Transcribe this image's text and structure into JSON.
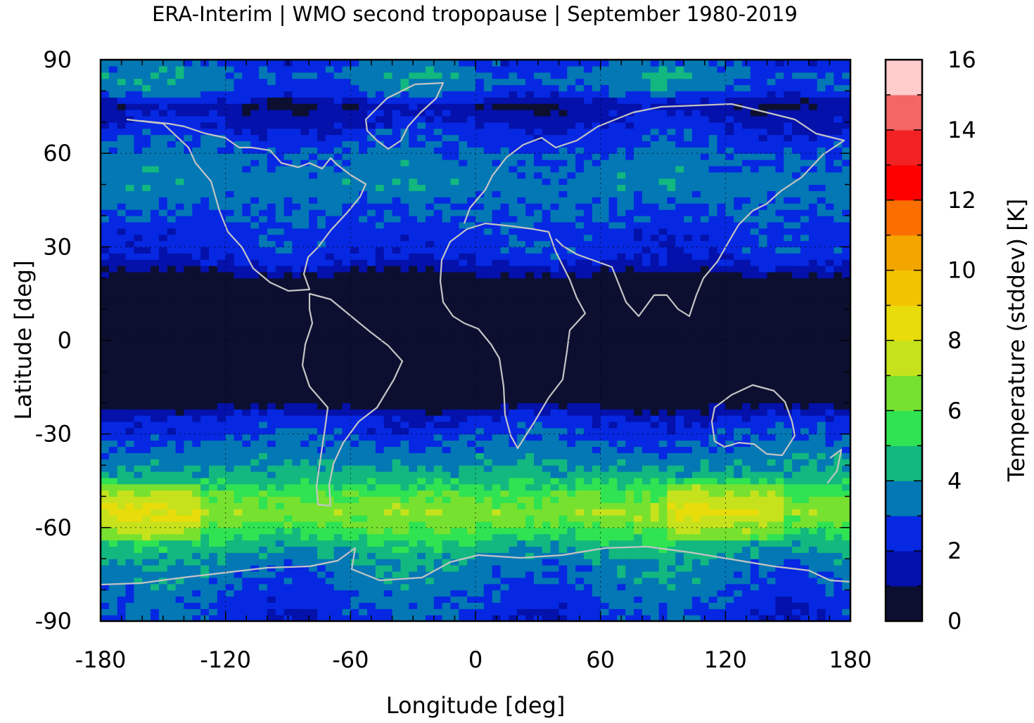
{
  "chart_data": {
    "type": "heatmap",
    "title": "ERA-Interim | WMO second tropopause | September 1980-2019",
    "xlabel": "Longitude [deg]",
    "ylabel": "Latitude [deg]",
    "xlim": [
      -180,
      180
    ],
    "ylim": [
      -90,
      90
    ],
    "x_ticks": [
      "-180",
      "-120",
      "-60",
      "0",
      "60",
      "120",
      "180"
    ],
    "y_ticks": [
      "90",
      "60",
      "30",
      "0",
      "-30",
      "-60",
      "-90"
    ],
    "grid": true,
    "colorbar": {
      "label": "Temperature (stddev) [K]",
      "range": [
        0,
        16
      ],
      "step": 1,
      "tick_labels": [
        "0",
        "2",
        "4",
        "6",
        "8",
        "10",
        "12",
        "14",
        "16"
      ],
      "colors": [
        "#0c0f30",
        "#0411aa",
        "#0628e2",
        "#0378b4",
        "#12b87f",
        "#2fe352",
        "#77e12f",
        "#c6e21c",
        "#e8dc0a",
        "#f2c300",
        "#f4a600",
        "#fb6f00",
        "#fe0000",
        "#f22222",
        "#f26666",
        "#ffcccc"
      ]
    },
    "zonal_profile": {
      "latitudes": [
        -90,
        -80,
        -70,
        -65,
        -60,
        -55,
        -50,
        -45,
        -40,
        -35,
        -30,
        -25,
        -20,
        0,
        20,
        25,
        30,
        35,
        40,
        45,
        50,
        60,
        70,
        75,
        80,
        85,
        90
      ],
      "values": [
        2.5,
        3.0,
        3.8,
        4.7,
        5.8,
        6.8,
        6.0,
        4.8,
        3.8,
        3.3,
        2.7,
        2.2,
        0.5,
        0.3,
        0.5,
        2.0,
        2.6,
        2.5,
        3.0,
        3.3,
        3.6,
        3.2,
        2.0,
        1.2,
        3.0,
        3.5,
        2.7
      ]
    }
  }
}
